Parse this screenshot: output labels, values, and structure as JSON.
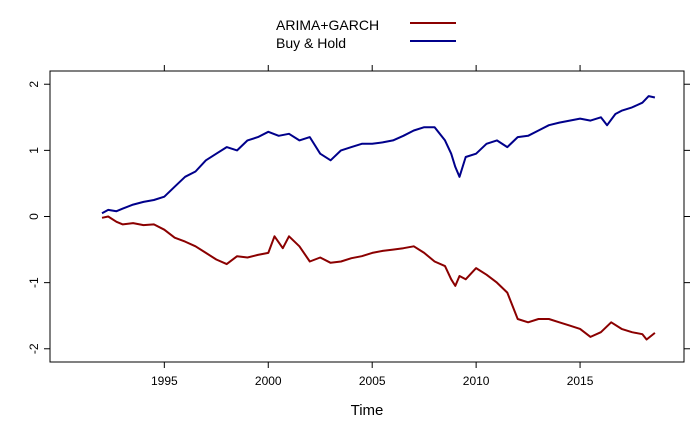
{
  "chart_data": {
    "type": "line",
    "title": "",
    "xlabel": "Time",
    "ylabel": "",
    "xlim": [
      1989.5,
      2020.0
    ],
    "ylim": [
      -2.2,
      2.2
    ],
    "x_ticks": [
      1995,
      2000,
      2005,
      2010,
      2015
    ],
    "x_tick_labels": [
      "1995",
      "2000",
      "2005",
      "2010",
      "2015"
    ],
    "y_ticks": [
      -2,
      -1,
      0,
      1,
      2
    ],
    "y_tick_labels": [
      "-2",
      "-1",
      "0",
      "1",
      "2"
    ],
    "grid": false,
    "legend_position": "top-center",
    "series": [
      {
        "name": "ARIMA+GARCH",
        "color": "#8b0000",
        "x": [
          1992.0,
          1992.3,
          1992.7,
          1993.0,
          1993.5,
          1994.0,
          1994.5,
          1995.0,
          1995.5,
          1996.0,
          1996.5,
          1997.0,
          1997.5,
          1998.0,
          1998.5,
          1999.0,
          1999.5,
          2000.0,
          2000.3,
          2000.7,
          2001.0,
          2001.5,
          2002.0,
          2002.5,
          2003.0,
          2003.5,
          2004.0,
          2004.5,
          2005.0,
          2005.5,
          2006.0,
          2006.5,
          2007.0,
          2007.5,
          2008.0,
          2008.5,
          2008.8,
          2009.0,
          2009.2,
          2009.5,
          2010.0,
          2010.5,
          2011.0,
          2011.5,
          2012.0,
          2012.5,
          2013.0,
          2013.5,
          2014.0,
          2014.5,
          2015.0,
          2015.5,
          2016.0,
          2016.5,
          2017.0,
          2017.5,
          2018.0,
          2018.2,
          2018.6
        ],
        "values": [
          -0.02,
          0.0,
          -0.08,
          -0.12,
          -0.1,
          -0.13,
          -0.12,
          -0.2,
          -0.32,
          -0.38,
          -0.45,
          -0.55,
          -0.65,
          -0.72,
          -0.6,
          -0.62,
          -0.58,
          -0.55,
          -0.3,
          -0.48,
          -0.3,
          -0.45,
          -0.68,
          -0.62,
          -0.7,
          -0.68,
          -0.63,
          -0.6,
          -0.55,
          -0.52,
          -0.5,
          -0.48,
          -0.45,
          -0.55,
          -0.68,
          -0.75,
          -0.95,
          -1.05,
          -0.9,
          -0.95,
          -0.78,
          -0.88,
          -1.0,
          -1.15,
          -1.55,
          -1.6,
          -1.55,
          -1.55,
          -1.6,
          -1.65,
          -1.7,
          -1.82,
          -1.75,
          -1.6,
          -1.7,
          -1.75,
          -1.78,
          -1.86,
          -1.76
        ]
      },
      {
        "name": "Buy & Hold",
        "color": "#00008b",
        "x": [
          1992.0,
          1992.3,
          1992.7,
          1993.0,
          1993.5,
          1994.0,
          1994.5,
          1995.0,
          1995.5,
          1996.0,
          1996.5,
          1997.0,
          1997.5,
          1998.0,
          1998.5,
          1999.0,
          1999.5,
          2000.0,
          2000.5,
          2001.0,
          2001.5,
          2002.0,
          2002.5,
          2003.0,
          2003.5,
          2004.0,
          2004.5,
          2005.0,
          2005.5,
          2006.0,
          2006.5,
          2007.0,
          2007.5,
          2008.0,
          2008.5,
          2008.8,
          2009.0,
          2009.2,
          2009.5,
          2010.0,
          2010.5,
          2011.0,
          2011.5,
          2012.0,
          2012.5,
          2013.0,
          2013.5,
          2014.0,
          2014.5,
          2015.0,
          2015.5,
          2016.0,
          2016.3,
          2016.7,
          2017.0,
          2017.5,
          2018.0,
          2018.3,
          2018.6
        ],
        "values": [
          0.05,
          0.1,
          0.08,
          0.12,
          0.18,
          0.22,
          0.25,
          0.3,
          0.45,
          0.6,
          0.68,
          0.85,
          0.95,
          1.05,
          1.0,
          1.15,
          1.2,
          1.28,
          1.22,
          1.25,
          1.15,
          1.2,
          0.95,
          0.85,
          1.0,
          1.05,
          1.1,
          1.1,
          1.12,
          1.15,
          1.22,
          1.3,
          1.35,
          1.35,
          1.15,
          0.95,
          0.75,
          0.6,
          0.9,
          0.95,
          1.1,
          1.15,
          1.05,
          1.2,
          1.22,
          1.3,
          1.38,
          1.42,
          1.45,
          1.48,
          1.45,
          1.5,
          1.38,
          1.55,
          1.6,
          1.65,
          1.72,
          1.82,
          1.8
        ]
      }
    ]
  }
}
